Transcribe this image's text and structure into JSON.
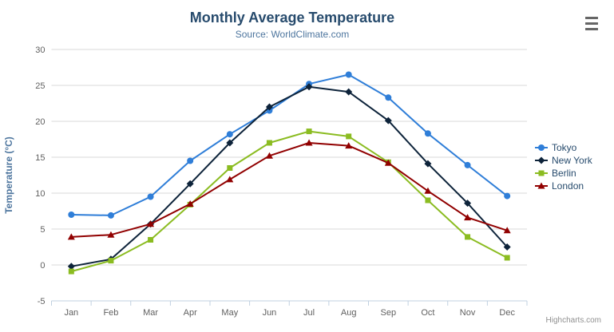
{
  "chart_data": {
    "type": "line",
    "title": "Monthly Average Temperature",
    "subtitle": "Source: WorldClimate.com",
    "xlabel": "",
    "ylabel": "Temperature (°C)",
    "ylim": [
      -5,
      30
    ],
    "ytick_step": 5,
    "grid": true,
    "legend_position": "right",
    "categories": [
      "Jan",
      "Feb",
      "Mar",
      "Apr",
      "May",
      "Jun",
      "Jul",
      "Aug",
      "Sep",
      "Oct",
      "Nov",
      "Dec"
    ],
    "series": [
      {
        "name": "Tokyo",
        "color": "#2f7ed8",
        "marker": "circle",
        "values": [
          7.0,
          6.9,
          9.5,
          14.5,
          18.2,
          21.5,
          25.2,
          26.5,
          23.3,
          18.3,
          13.9,
          9.6
        ]
      },
      {
        "name": "New York",
        "color": "#0d233a",
        "marker": "diamond",
        "values": [
          -0.2,
          0.8,
          5.7,
          11.3,
          17.0,
          22.0,
          24.8,
          24.1,
          20.1,
          14.1,
          8.6,
          2.5
        ]
      },
      {
        "name": "Berlin",
        "color": "#8bbc21",
        "marker": "square",
        "values": [
          -0.9,
          0.6,
          3.5,
          8.4,
          13.5,
          17.0,
          18.6,
          17.9,
          14.3,
          9.0,
          3.9,
          1.0
        ]
      },
      {
        "name": "London",
        "color": "#910000",
        "marker": "triangle",
        "values": [
          3.9,
          4.2,
          5.7,
          8.5,
          11.9,
          15.2,
          17.0,
          16.6,
          14.2,
          10.3,
          6.6,
          4.8
        ]
      }
    ]
  },
  "toolbar": {
    "menu_icon": "hamburger-icon"
  },
  "credits": {
    "label": "Highcharts.com"
  },
  "colors": {
    "title": "#274b6d",
    "subtitle": "#4d759e",
    "axis_title": "#4d759e",
    "axis_label": "#606060",
    "grid": "#d8d8d8",
    "axis_line": "#c0d0e0",
    "legend_text": "#274b6d",
    "credit": "#909090",
    "menu_icon": "#666666",
    "background": "#ffffff"
  }
}
